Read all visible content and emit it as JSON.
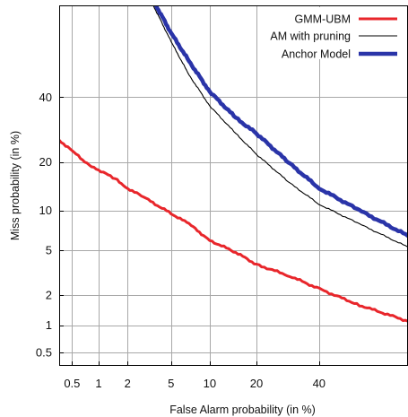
{
  "chart_data": {
    "type": "line",
    "xlabel": "False Alarm probability (in %)",
    "ylabel": "Miss probability (in %)",
    "x_scale": "normal-deviate (DET)",
    "y_scale": "normal-deviate (DET)",
    "xlim": [
      0.35,
      72
    ],
    "ylim": [
      0.35,
      72
    ],
    "grid": true,
    "legend_position": "top-right",
    "x_ticks": [
      0.5,
      1,
      2,
      5,
      10,
      20,
      40
    ],
    "x_tick_labels": [
      "0.5",
      "1",
      "2",
      "5",
      "10",
      "20",
      "40"
    ],
    "y_ticks": [
      0.5,
      1,
      2,
      5,
      10,
      20,
      40
    ],
    "y_tick_labels": [
      "0.5",
      "1",
      "2",
      "5",
      "10",
      "20",
      "40"
    ],
    "series": [
      {
        "name": "GMM-UBM",
        "color": "#e8262b",
        "width": "thick",
        "x": [
          0.35,
          0.5,
          0.7,
          1,
          1.5,
          2,
          3,
          5,
          7,
          10,
          15,
          20,
          30,
          40,
          55,
          72
        ],
        "y": [
          26,
          23,
          20,
          18,
          16,
          14,
          12,
          9.5,
          8,
          6,
          4.8,
          3.8,
          3,
          2.3,
          1.6,
          1.1
        ]
      },
      {
        "name": "AM with pruning",
        "color": "#000000",
        "width": "thin",
        "x": [
          3.5,
          5,
          7,
          10,
          15,
          20,
          30,
          40,
          55,
          72
        ],
        "y": [
          72,
          60,
          48,
          37,
          28,
          22,
          15,
          11,
          8,
          5.3
        ]
      },
      {
        "name": "Anchor Model",
        "color": "#2a34a8",
        "width": "bold",
        "x": [
          3.7,
          5,
          7,
          10,
          15,
          20,
          30,
          40,
          55,
          72
        ],
        "y": [
          72,
          63,
          53,
          42,
          33,
          28,
          19.5,
          14,
          10,
          6.5
        ]
      }
    ]
  }
}
